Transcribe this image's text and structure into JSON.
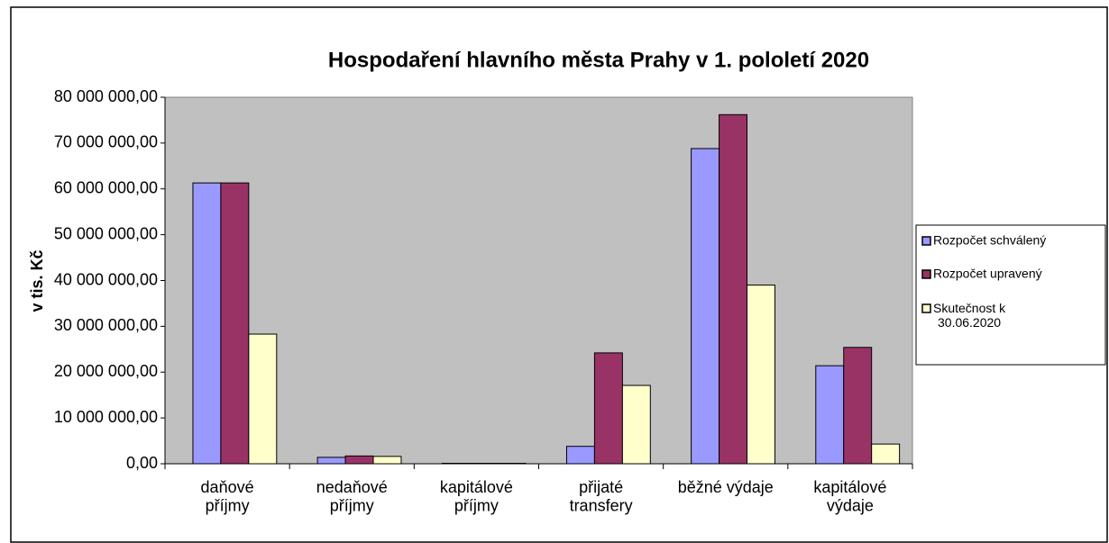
{
  "chart_data": {
    "type": "bar",
    "title": "Hospodaření hlavního města Prahy v 1. pololetí 2020",
    "y_label": "v tis. Kč",
    "categories": [
      "daňové\npříjmy",
      "nedaňové\npříjmy",
      "kapitálové\npříjmy",
      "přijaté\ntransfery",
      "běžné výdaje",
      "kapitálové\nvýdaje"
    ],
    "series": [
      {
        "name": "Rozpočet  schválený",
        "color": "#9999ff",
        "values": [
          61300000,
          1400000,
          100000,
          3800000,
          68800000,
          21400000
        ]
      },
      {
        "name": "Rozpočet upravený",
        "color": "#993366",
        "values": [
          61300000,
          1700000,
          100000,
          24200000,
          76200000,
          25400000
        ]
      },
      {
        "name": "Skutečnost k\n30.06.2020",
        "color": "#ffffcc",
        "values": [
          28300000,
          1600000,
          100000,
          17100000,
          39000000,
          4300000
        ]
      }
    ],
    "ylim": [
      0,
      80000000
    ],
    "yticks": [
      {
        "value": 0,
        "label": "0,00"
      },
      {
        "value": 10000000,
        "label": "10 000 000,00"
      },
      {
        "value": 20000000,
        "label": "20 000 000,00"
      },
      {
        "value": 30000000,
        "label": "30 000 000,00"
      },
      {
        "value": 40000000,
        "label": "40 000 000,00"
      },
      {
        "value": 50000000,
        "label": "50 000 000,00"
      },
      {
        "value": 60000000,
        "label": "60 000 000,00"
      },
      {
        "value": 70000000,
        "label": "70 000 000,00"
      },
      {
        "value": 80000000,
        "label": "80 000 000,00"
      }
    ],
    "plot_background": "#c0c0c0",
    "legend": "right"
  }
}
